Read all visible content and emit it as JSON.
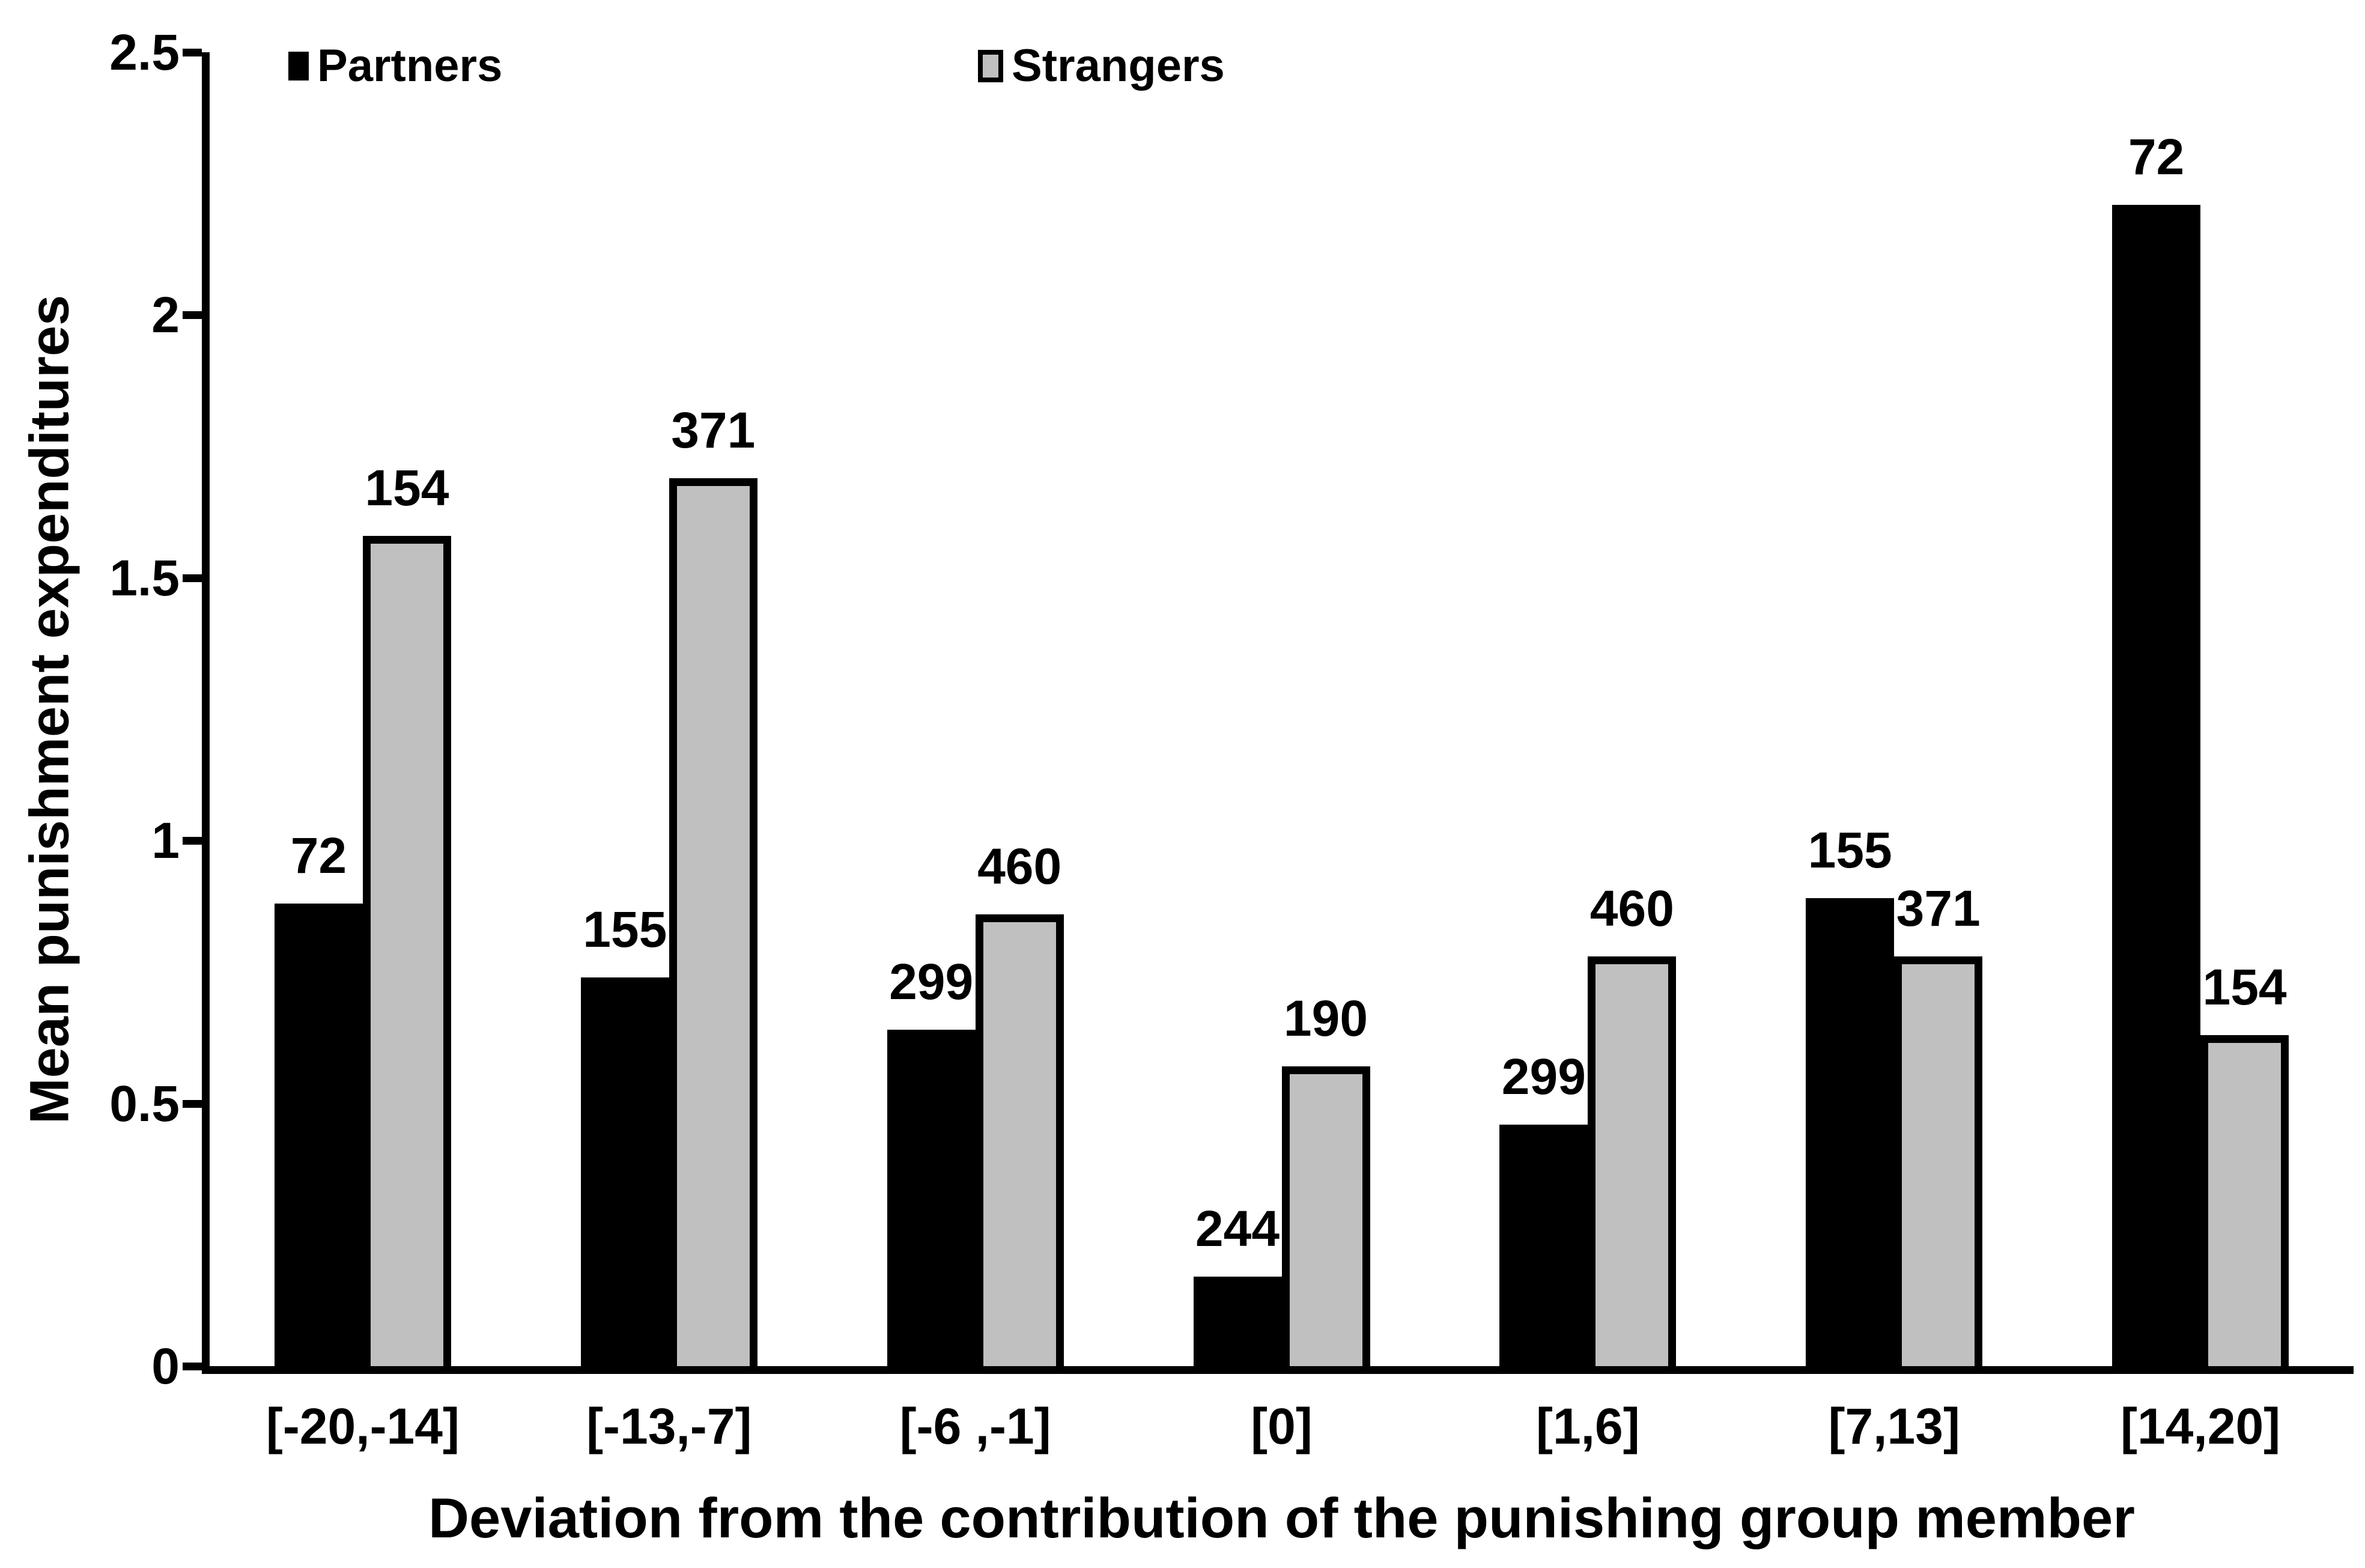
{
  "figure": {
    "background": "#ffffff",
    "text_color": "#000000"
  },
  "chart_data": {
    "type": "bar",
    "title": "",
    "xlabel": "Deviation from the contribution of the punishing group member",
    "ylabel": "Mean punishment expenditures",
    "categories": [
      "[-20,-14]",
      "[-13,-7]",
      "[-6 ,-1]",
      "[0]",
      "[1,6]",
      "[7,13]",
      "[14,20]"
    ],
    "series": [
      {
        "name": "Partners",
        "color": "#000000",
        "border_color": "#000000",
        "values": [
          0.88,
          0.74,
          0.64,
          0.17,
          0.46,
          0.89,
          2.21
        ],
        "bar_labels": [
          "72",
          "155",
          "299",
          "244",
          "299",
          "155",
          "72"
        ]
      },
      {
        "name": "Strangers",
        "color": "#c0c0c0",
        "border_color": "#000000",
        "values": [
          1.58,
          1.69,
          0.86,
          0.57,
          0.78,
          0.78,
          0.63
        ],
        "bar_labels": [
          "154",
          "371",
          "460",
          "190",
          "460",
          "371",
          "154"
        ]
      }
    ],
    "ylim": [
      0,
      2.5
    ],
    "yticks": [
      0,
      0.5,
      1,
      1.5,
      2,
      2.5
    ],
    "ytick_labels": [
      "0",
      "0.5",
      "1",
      "1.5",
      "2",
      "2.5"
    ],
    "grid": false,
    "legend_position": "top"
  }
}
